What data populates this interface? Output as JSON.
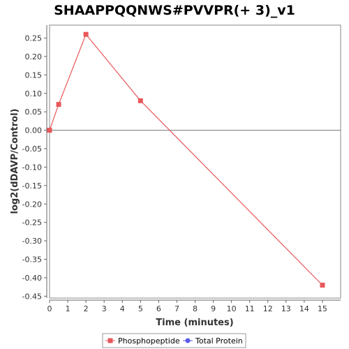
{
  "chart_data": {
    "type": "line",
    "title": "SHAAPPQQNWS#PVVPR(+ 3)_v1",
    "xlabel": "Time (minutes)",
    "ylabel": "log2(dDAVP/Control)",
    "xlim": [
      0,
      16
    ],
    "ylim": [
      -0.455,
      0.285
    ],
    "x_ticks": [
      0,
      1,
      2,
      3,
      4,
      5,
      6,
      7,
      8,
      9,
      10,
      11,
      12,
      13,
      14,
      15
    ],
    "y_ticks": [
      0.25,
      0.2,
      0.15,
      0.1,
      0.05,
      0.0,
      -0.05,
      -0.1,
      -0.15,
      -0.2,
      -0.25,
      -0.3,
      -0.35,
      -0.4,
      -0.45
    ],
    "zero_line": 0,
    "grid": false,
    "legend_position": "bottom",
    "series": [
      {
        "name": "Phosphopeptide",
        "color": "#e8585a",
        "marker": "square",
        "x": [
          0,
          0.5,
          2,
          5,
          15
        ],
        "y": [
          0.0,
          0.07,
          0.26,
          0.08,
          -0.42
        ]
      },
      {
        "name": "Total Protein",
        "color": "#5a5aee",
        "marker": "circle",
        "x": [],
        "y": []
      }
    ]
  }
}
